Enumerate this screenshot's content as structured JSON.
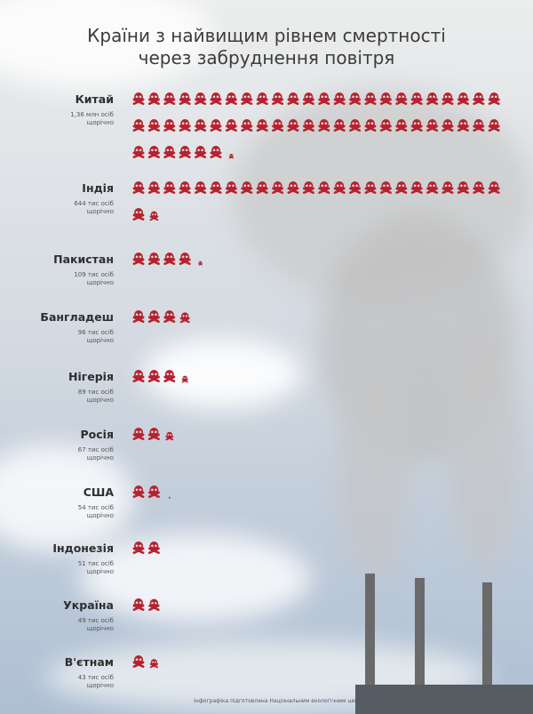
{
  "chart_data": {
    "type": "pictogram",
    "title": "Країни з найвищим рівнем смертності\nчерез забруднення повітря",
    "categories": [
      "Китай",
      "Індія",
      "Пакистан",
      "Бангладеш",
      "Нігерія",
      "Росія",
      "США",
      "Індонезія",
      "Україна",
      "В'єтнам"
    ],
    "values": [
      1360000,
      644000,
      109000,
      96000,
      89000,
      67000,
      54000,
      51000,
      49000,
      43000
    ],
    "value_labels": [
      "1,36 млн осіб\nщорічно",
      "644 тис осіб\nщорічно",
      "109 тис осіб\nщорічно",
      "96 тис осіб\nщорічно",
      "89 тис осіб\nщорічно",
      "67 тис осіб\nщорічно",
      "54 тис осіб\nщорічно",
      "51 тис осіб\nщорічно",
      "49 тис осіб\nщорічно",
      "43 тис осіб\nщорічно"
    ],
    "color": "#b42330",
    "source": "Інфографіка підготовлена Національним екологічним центром України"
  }
}
